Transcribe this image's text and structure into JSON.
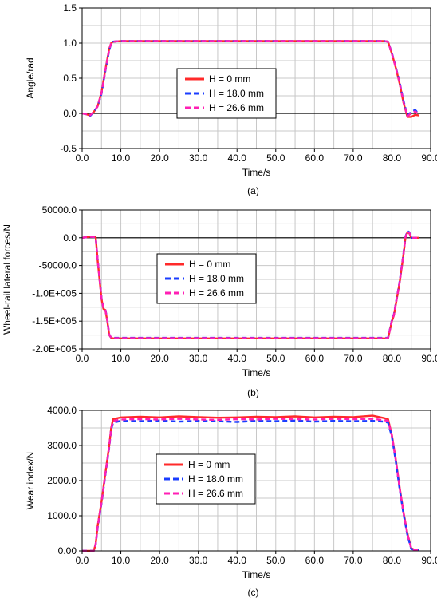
{
  "chart_data": [
    {
      "type": "line",
      "caption": "(a)",
      "xlabel": "Time/s",
      "ylabel": "Angle/rad",
      "xlim": [
        0,
        90
      ],
      "ylim": [
        -0.5,
        1.5
      ],
      "xticks": [
        "0.0",
        "10.0",
        "20.0",
        "30.0",
        "40.0",
        "50.0",
        "60.0",
        "70.0",
        "80.0",
        "90.0"
      ],
      "yticks": [
        {
          "value": 1.5,
          "label": "1.5"
        },
        {
          "value": 1.0,
          "label": "1.0"
        },
        {
          "value": 0.5,
          "label": "0.5"
        },
        {
          "value": 0.0,
          "label": "0.0"
        },
        {
          "value": -0.5,
          "label": "-0.5"
        }
      ],
      "grid": true,
      "legend": "center",
      "series": [
        {
          "name": "H = 0 mm",
          "color": "#ff2a2a",
          "style": "solid",
          "x": [
            0,
            1,
            2,
            3,
            4,
            5,
            6,
            7,
            7.5,
            8,
            10,
            20,
            30,
            40,
            50,
            60,
            70,
            78,
            79,
            80,
            81,
            82,
            83,
            84,
            85,
            86,
            87
          ],
          "y": [
            0,
            -0.01,
            -0.03,
            0.02,
            0.1,
            0.3,
            0.62,
            0.92,
            1.0,
            1.02,
            1.03,
            1.03,
            1.03,
            1.03,
            1.03,
            1.03,
            1.03,
            1.03,
            1.02,
            0.85,
            0.65,
            0.42,
            0.15,
            -0.05,
            -0.05,
            -0.02,
            -0.03
          ]
        },
        {
          "name": "H = 18.0 mm",
          "color": "#1a3cff",
          "style": "dash",
          "x": [
            0,
            1,
            2,
            3,
            4,
            5,
            6,
            7,
            7.5,
            8,
            10,
            20,
            30,
            40,
            50,
            60,
            70,
            78,
            79,
            80,
            81,
            82,
            83,
            84,
            85,
            86,
            87
          ],
          "y": [
            0,
            -0.01,
            -0.04,
            0.02,
            0.1,
            0.28,
            0.6,
            0.9,
            0.99,
            1.02,
            1.03,
            1.03,
            1.03,
            1.03,
            1.03,
            1.03,
            1.03,
            1.03,
            1.02,
            0.86,
            0.66,
            0.44,
            0.18,
            -0.03,
            0.02,
            0.05,
            -0.01
          ]
        },
        {
          "name": "H = 26.6 mm",
          "color": "#ff1fb4",
          "style": "dash",
          "x": [
            0,
            1,
            2,
            3,
            4,
            5,
            6,
            7,
            7.5,
            8,
            10,
            20,
            30,
            40,
            50,
            60,
            70,
            78,
            79,
            80,
            81,
            82,
            83,
            84,
            85,
            86,
            87
          ],
          "y": [
            0,
            -0.01,
            -0.03,
            0.02,
            0.1,
            0.29,
            0.61,
            0.91,
            1.0,
            1.02,
            1.03,
            1.03,
            1.03,
            1.03,
            1.03,
            1.03,
            1.03,
            1.03,
            1.02,
            0.85,
            0.65,
            0.43,
            0.16,
            -0.04,
            0.0,
            0.03,
            -0.02
          ]
        }
      ]
    },
    {
      "type": "line",
      "caption": "(b)",
      "xlabel": "Time/s",
      "ylabel": "Wheel-rail lateral forces/N",
      "xlim": [
        0,
        90
      ],
      "ylim": [
        -200000,
        50000
      ],
      "xticks": [
        "0.0",
        "10.0",
        "20.0",
        "30.0",
        "40.0",
        "50.0",
        "60.0",
        "70.0",
        "80.0",
        "90.0"
      ],
      "yticks": [
        {
          "value": 50000,
          "label": "50000.0"
        },
        {
          "value": 0,
          "label": "0.0"
        },
        {
          "value": -50000,
          "label": "-50000.0"
        },
        {
          "value": -100000,
          "label": "-1.0E+005"
        },
        {
          "value": -150000,
          "label": "-1.5E+005"
        },
        {
          "value": -200000,
          "label": "-2.0E+005"
        }
      ],
      "grid": true,
      "legend": "center-left",
      "series": [
        {
          "name": "H = 0 mm",
          "color": "#ff2a2a",
          "style": "solid",
          "x": [
            0,
            2,
            3.5,
            4,
            5,
            5.5,
            6,
            6.5,
            7,
            7.5,
            8,
            10,
            20,
            30,
            40,
            50,
            60,
            70,
            79,
            80,
            80.5,
            81,
            82,
            83,
            83.5,
            84,
            84.5,
            85,
            86,
            87
          ],
          "y": [
            0,
            2000,
            1000,
            -40000,
            -110000,
            -128000,
            -130000,
            -150000,
            -175000,
            -180000,
            -181000,
            -181000,
            -181000,
            -181000,
            -181000,
            -181000,
            -181000,
            -181000,
            -181000,
            -150000,
            -140000,
            -120000,
            -80000,
            -30000,
            0,
            10000,
            8000,
            0,
            0,
            0
          ]
        },
        {
          "name": "H = 18.0 mm",
          "color": "#1a3cff",
          "style": "dash",
          "x": [
            0,
            2,
            3.5,
            4,
            5,
            5.5,
            6,
            6.5,
            7,
            7.5,
            8,
            10,
            20,
            30,
            40,
            50,
            60,
            70,
            79,
            80,
            80.5,
            81,
            82,
            83,
            83.5,
            84,
            84.5,
            85,
            86,
            87
          ],
          "y": [
            0,
            2000,
            1000,
            -38000,
            -108000,
            -126000,
            -128000,
            -148000,
            -174000,
            -180000,
            -180000,
            -180000,
            -180000,
            -180000,
            -180000,
            -180000,
            -180000,
            -180000,
            -180000,
            -148000,
            -138000,
            -118000,
            -78000,
            -28000,
            2000,
            12000,
            10000,
            0,
            0,
            0
          ]
        },
        {
          "name": "H = 26.6 mm",
          "color": "#ff1fb4",
          "style": "dash",
          "x": [
            0,
            2,
            3.5,
            4,
            5,
            5.5,
            6,
            6.5,
            7,
            7.5,
            8,
            10,
            20,
            30,
            40,
            50,
            60,
            70,
            79,
            80,
            80.5,
            81,
            82,
            83,
            83.5,
            84,
            84.5,
            85,
            86,
            87
          ],
          "y": [
            0,
            2000,
            1000,
            -39000,
            -109000,
            -127000,
            -129000,
            -149000,
            -174000,
            -180000,
            -180500,
            -180500,
            -180500,
            -180500,
            -180500,
            -180500,
            -180500,
            -180500,
            -180500,
            -149000,
            -139000,
            -119000,
            -79000,
            -29000,
            1000,
            11000,
            9000,
            0,
            0,
            0
          ]
        }
      ]
    },
    {
      "type": "line",
      "caption": "(c)",
      "xlabel": "Time/s",
      "ylabel": "Wear index/N",
      "xlim": [
        0,
        90
      ],
      "ylim": [
        0,
        4000
      ],
      "xticks": [
        "0.0",
        "10.0",
        "20.0",
        "30.0",
        "40.0",
        "50.0",
        "60.0",
        "70.0",
        "80.0",
        "90.0"
      ],
      "yticks": [
        {
          "value": 4000,
          "label": "4000.0"
        },
        {
          "value": 3000,
          "label": "3000.0"
        },
        {
          "value": 2000,
          "label": "2000.0"
        },
        {
          "value": 1000,
          "label": "1000.0"
        },
        {
          "value": 0,
          "label": "0.00"
        }
      ],
      "grid": true,
      "legend": "center",
      "series": [
        {
          "name": "H = 0 mm",
          "color": "#ff2a2a",
          "style": "solid",
          "x": [
            0,
            3,
            3.5,
            4,
            5,
            6,
            7,
            7.5,
            8,
            10,
            15,
            20,
            25,
            30,
            35,
            40,
            45,
            50,
            55,
            60,
            65,
            70,
            75,
            78,
            79,
            80,
            81,
            82,
            83,
            84,
            85,
            86,
            87
          ],
          "y": [
            0,
            0,
            200,
            700,
            1400,
            2200,
            3000,
            3500,
            3750,
            3800,
            3820,
            3800,
            3830,
            3810,
            3790,
            3800,
            3820,
            3810,
            3830,
            3800,
            3820,
            3810,
            3850,
            3780,
            3750,
            3300,
            2600,
            1800,
            1100,
            500,
            80,
            20,
            20
          ]
        },
        {
          "name": "H = 18.0 mm",
          "color": "#1a3cff",
          "style": "dash",
          "x": [
            0,
            3,
            3.5,
            4,
            5,
            6,
            7,
            7.5,
            8,
            10,
            15,
            20,
            25,
            30,
            35,
            40,
            45,
            50,
            55,
            60,
            65,
            70,
            75,
            78,
            79,
            80,
            81,
            82,
            83,
            84,
            85,
            86,
            87
          ],
          "y": [
            0,
            0,
            180,
            650,
            1350,
            2150,
            2950,
            3450,
            3650,
            3700,
            3690,
            3710,
            3680,
            3700,
            3690,
            3670,
            3700,
            3690,
            3710,
            3680,
            3700,
            3690,
            3700,
            3680,
            3650,
            3250,
            2550,
            1750,
            1050,
            450,
            60,
            20,
            20
          ]
        },
        {
          "name": "H = 26.6 mm",
          "color": "#ff1fb4",
          "style": "dash",
          "x": [
            0,
            3,
            3.5,
            4,
            5,
            6,
            7,
            7.5,
            8,
            10,
            15,
            20,
            25,
            30,
            35,
            40,
            45,
            50,
            55,
            60,
            65,
            70,
            75,
            78,
            79,
            80,
            81,
            82,
            83,
            84,
            85,
            86,
            87
          ],
          "y": [
            0,
            0,
            190,
            680,
            1380,
            2180,
            2980,
            3480,
            3700,
            3740,
            3750,
            3740,
            3760,
            3740,
            3730,
            3750,
            3740,
            3760,
            3750,
            3740,
            3760,
            3750,
            3760,
            3720,
            3700,
            3280,
            2580,
            1780,
            1080,
            480,
            70,
            20,
            20
          ]
        }
      ]
    }
  ]
}
